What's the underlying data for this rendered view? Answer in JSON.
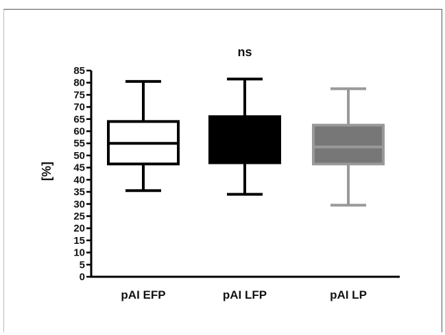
{
  "chart_data": {
    "type": "box",
    "title": "",
    "annotation": "ns",
    "xlabel": "",
    "ylabel": "[%]",
    "ylim": [
      0,
      85
    ],
    "yticks": [
      0,
      5,
      10,
      15,
      20,
      25,
      30,
      35,
      40,
      45,
      50,
      55,
      60,
      65,
      70,
      75,
      80,
      85
    ],
    "grid": false,
    "categories": [
      "pAI EFP",
      "pAI LFP",
      "pAI LP"
    ],
    "boxes": [
      {
        "category": "pAI EFP",
        "min": 35.5,
        "q1": 46.5,
        "median": 55,
        "q3": 64,
        "max": 80.5,
        "fill": "#ffffff",
        "stroke": "#000000",
        "median_color": "#000000"
      },
      {
        "category": "pAI LFP",
        "min": 34,
        "q1": 47,
        "median": 56,
        "q3": 66,
        "max": 81.5,
        "fill": "#000000",
        "stroke": "#000000",
        "median_color": "#000000"
      },
      {
        "category": "pAI LP",
        "min": 29.5,
        "q1": 46.5,
        "median": 53.5,
        "q3": 62.5,
        "max": 77.5,
        "fill": "#777777",
        "stroke": "#999999",
        "median_color": "#999999"
      }
    ]
  }
}
